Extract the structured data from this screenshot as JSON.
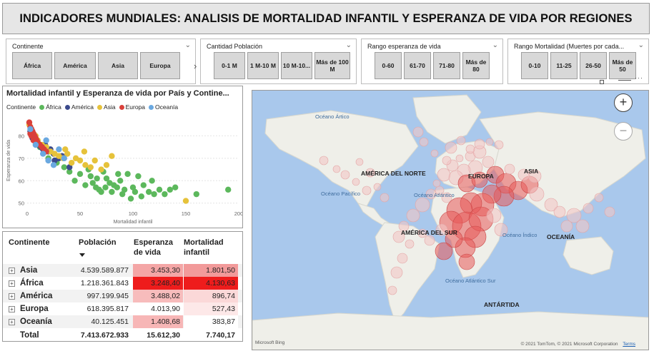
{
  "header": {
    "title": "INDICADORES MUNDIALES: ANALISIS DE MORTALIDAD INFANTIL Y ESPERANZA DE VIDA POR REGIONES"
  },
  "slicers": {
    "continente": {
      "title": "Continente",
      "items": [
        "África",
        "América",
        "Asia",
        "Europa"
      ]
    },
    "poblacion": {
      "title": "Cantidad Población",
      "items": [
        "0-1 M",
        "1 M-10 M",
        "10 M-10...",
        "Más de 100 M"
      ]
    },
    "esperanza": {
      "title": "Rango esperanza de vida",
      "items": [
        "0-60",
        "61-70",
        "71-80",
        "Más de 80"
      ]
    },
    "mortalidad": {
      "title": "Rango Mortalidad (Muertes por cada...",
      "items": [
        "0-10",
        "11-25",
        "26-50",
        "Más de 50"
      ]
    }
  },
  "scatter": {
    "title": "Mortalidad infantil y Esperanza de vida por País y Contine...",
    "legend_title": "Continente",
    "legend": [
      {
        "name": "África",
        "color": "#5cb85c"
      },
      {
        "name": "América",
        "color": "#3b4a8c"
      },
      {
        "name": "Asia",
        "color": "#e6c23a"
      },
      {
        "name": "Europa",
        "color": "#d9403a"
      },
      {
        "name": "Oceanía",
        "color": "#6aa8e0"
      }
    ]
  },
  "chart_data": {
    "type": "scatter",
    "title": "Mortalidad infantil y Esperanza de vida por País y Contine...",
    "xlabel": "Mortalidad infantil",
    "ylabel": "Esperanza de vida",
    "xlim": [
      0,
      200
    ],
    "ylim": [
      48,
      90
    ],
    "xticks": [
      "0",
      "50",
      "100",
      "150",
      "200"
    ],
    "yticks": [
      "50",
      "60",
      "70",
      "80"
    ],
    "series": [
      {
        "name": "África",
        "color": "#5cb85c",
        "points": [
          [
            10,
            77
          ],
          [
            12,
            75
          ],
          [
            20,
            70
          ],
          [
            28,
            68
          ],
          [
            35,
            66
          ],
          [
            40,
            64
          ],
          [
            45,
            60
          ],
          [
            50,
            63
          ],
          [
            55,
            58
          ],
          [
            60,
            62
          ],
          [
            62,
            59
          ],
          [
            65,
            57
          ],
          [
            68,
            56
          ],
          [
            70,
            55
          ],
          [
            72,
            64
          ],
          [
            75,
            61
          ],
          [
            78,
            59
          ],
          [
            80,
            55
          ],
          [
            82,
            58
          ],
          [
            85,
            57
          ],
          [
            88,
            60
          ],
          [
            90,
            54
          ],
          [
            92,
            56
          ],
          [
            95,
            63
          ],
          [
            98,
            52
          ],
          [
            100,
            57
          ],
          [
            102,
            55
          ],
          [
            105,
            62
          ],
          [
            108,
            53
          ],
          [
            110,
            58
          ],
          [
            115,
            55
          ],
          [
            118,
            60
          ],
          [
            120,
            54
          ],
          [
            125,
            56
          ],
          [
            130,
            54
          ],
          [
            135,
            56
          ],
          [
            140,
            57
          ],
          [
            160,
            54
          ],
          [
            190,
            56
          ],
          [
            58,
            65
          ],
          [
            66,
            61
          ],
          [
            74,
            57
          ],
          [
            86,
            63
          ]
        ]
      },
      {
        "name": "América",
        "color": "#3b4a8c",
        "points": [
          [
            3,
            82
          ],
          [
            5,
            79
          ],
          [
            7,
            78
          ],
          [
            9,
            77
          ],
          [
            11,
            76
          ],
          [
            13,
            75
          ],
          [
            15,
            74
          ],
          [
            17,
            76
          ],
          [
            20,
            73
          ],
          [
            22,
            74
          ],
          [
            25,
            72
          ],
          [
            30,
            70
          ],
          [
            33,
            71
          ],
          [
            40,
            66
          ],
          [
            26,
            69
          ]
        ]
      },
      {
        "name": "Asia",
        "color": "#e6c23a",
        "points": [
          [
            2,
            85
          ],
          [
            4,
            83
          ],
          [
            6,
            81
          ],
          [
            8,
            80
          ],
          [
            10,
            78
          ],
          [
            14,
            76
          ],
          [
            18,
            75
          ],
          [
            22,
            73
          ],
          [
            26,
            72
          ],
          [
            30,
            71
          ],
          [
            34,
            70
          ],
          [
            38,
            72
          ],
          [
            42,
            68
          ],
          [
            46,
            70
          ],
          [
            50,
            69
          ],
          [
            55,
            67
          ],
          [
            60,
            66
          ],
          [
            64,
            69
          ],
          [
            70,
            65
          ],
          [
            75,
            67
          ],
          [
            80,
            71
          ],
          [
            150,
            51
          ],
          [
            36,
            74
          ],
          [
            54,
            73
          ]
        ]
      },
      {
        "name": "Europa",
        "color": "#d9403a",
        "points": [
          [
            2,
            86
          ],
          [
            3,
            84
          ],
          [
            4,
            83
          ],
          [
            5,
            82
          ],
          [
            6,
            81
          ],
          [
            7,
            80
          ],
          [
            8,
            79
          ],
          [
            9,
            78
          ],
          [
            10,
            77
          ],
          [
            12,
            76
          ],
          [
            14,
            75
          ],
          [
            16,
            74
          ],
          [
            18,
            73
          ],
          [
            4,
            80
          ],
          [
            6,
            78
          ],
          [
            3,
            81
          ]
        ]
      },
      {
        "name": "Oceanía",
        "color": "#6aa8e0",
        "points": [
          [
            3,
            83
          ],
          [
            8,
            76
          ],
          [
            15,
            72
          ],
          [
            20,
            69
          ],
          [
            25,
            67
          ],
          [
            30,
            74
          ],
          [
            18,
            78
          ],
          [
            35,
            70
          ]
        ]
      }
    ]
  },
  "matrix": {
    "headers": {
      "continente": "Continente",
      "poblacion": "Población",
      "esperanza": "Esperanza de vida",
      "mortalidad": "Mortalidad infantil"
    },
    "rows": [
      {
        "name": "Asia",
        "poblacion": "4.539.589.877",
        "esperanza": "3.453,30",
        "mortalidad": "1.801,50",
        "esp_color": "#f4a6a6",
        "mort_color": "#f29a9a"
      },
      {
        "name": "África",
        "poblacion": "1.218.361.843",
        "esperanza": "3.248,40",
        "mortalidad": "4.130,63",
        "esp_color": "#ee1c1c",
        "mort_color": "#ee1c1c"
      },
      {
        "name": "América",
        "poblacion": "997.199.945",
        "esperanza": "3.488,02",
        "mortalidad": "896,74",
        "esp_color": "#f7bcbc",
        "mort_color": "#fbd8d8"
      },
      {
        "name": "Europa",
        "poblacion": "618.395.817",
        "esperanza": "4.013,90",
        "mortalidad": "527,43",
        "esp_color": "#ffffff",
        "mort_color": "#fde8e8"
      },
      {
        "name": "Oceanía",
        "poblacion": "40.125.451",
        "esperanza": "1.408,68",
        "mortalidad": "383,87",
        "esp_color": "#f7b6b6",
        "mort_color": "#ffffff"
      }
    ],
    "total": {
      "name": "Total",
      "poblacion": "7.413.672.933",
      "esperanza": "15.612,30",
      "mortalidad": "7.740,17"
    }
  },
  "map": {
    "labels": {
      "na": "AMÉRICA DEL NORTE",
      "sa": "AMÉRICA DEL SUR",
      "eu": "EUROPA",
      "asia": "ASIA",
      "oc": "OCEANÍA",
      "ant": "ANTÁRTIDA",
      "arctic": "Océano Ártico",
      "pacific": "Océano Pacífico",
      "atlantic": "Océano Atlántico",
      "indian": "Océano Índico",
      "s_atlantic": "Océano Atlántico Sur"
    },
    "attribution": "© 2021 TomTom, © 2021 Microsoft Corporation",
    "terms": "Terms",
    "brand": "Microsoft Bing",
    "land_color": "#efefe9",
    "water_color": "#a9c8ec",
    "bubble_color": "#e85a5a"
  }
}
